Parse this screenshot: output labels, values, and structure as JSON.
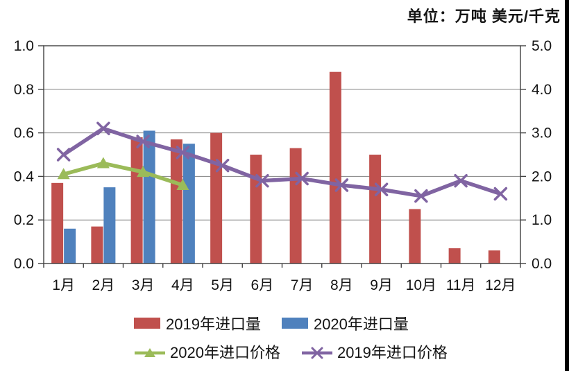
{
  "unit_label": "单位：万吨 美元/千克",
  "chart_data": {
    "type": "combo-bar-line",
    "title": "",
    "categories": [
      "1月",
      "2月",
      "3月",
      "4月",
      "5月",
      "6月",
      "7月",
      "8月",
      "9月",
      "10月",
      "11月",
      "12月"
    ],
    "series": [
      {
        "name": "2019年进口量",
        "kind": "bar",
        "axis": "left",
        "color": "#C0504D",
        "values": [
          0.37,
          0.17,
          0.58,
          0.57,
          0.6,
          0.5,
          0.53,
          0.88,
          0.5,
          0.25,
          0.07,
          0.06
        ]
      },
      {
        "name": "2020年进口量",
        "kind": "bar",
        "axis": "left",
        "color": "#4F81BD",
        "values": [
          0.16,
          0.35,
          0.61,
          0.55,
          null,
          null,
          null,
          null,
          null,
          null,
          null,
          null
        ]
      },
      {
        "name": "2020年进口价格",
        "kind": "line",
        "marker": "triangle",
        "axis": "right",
        "color": "#9BBB59",
        "values": [
          2.05,
          2.3,
          2.1,
          1.8,
          null,
          null,
          null,
          null,
          null,
          null,
          null,
          null
        ]
      },
      {
        "name": "2019年进口价格",
        "kind": "line",
        "marker": "x",
        "axis": "right",
        "color": "#8064A2",
        "values": [
          2.5,
          3.1,
          2.8,
          2.55,
          2.25,
          1.9,
          1.95,
          1.8,
          1.7,
          1.55,
          1.9,
          1.6
        ]
      }
    ],
    "left_axis": {
      "label": "万吨",
      "min": 0,
      "max": 1.0,
      "ticks": [
        "0.0",
        "0.2",
        "0.4",
        "0.6",
        "0.8",
        "1.0"
      ]
    },
    "right_axis": {
      "label": "美元/千克",
      "min": 0,
      "max": 5.0,
      "ticks": [
        "0.0",
        "1.0",
        "2.0",
        "3.0",
        "4.0",
        "5.0"
      ]
    },
    "grid": true,
    "grid_color": "#808080",
    "axis_color": "#404040",
    "legend_position": "bottom",
    "legend_rows": [
      [
        0,
        1
      ],
      [
        2,
        3
      ]
    ]
  }
}
